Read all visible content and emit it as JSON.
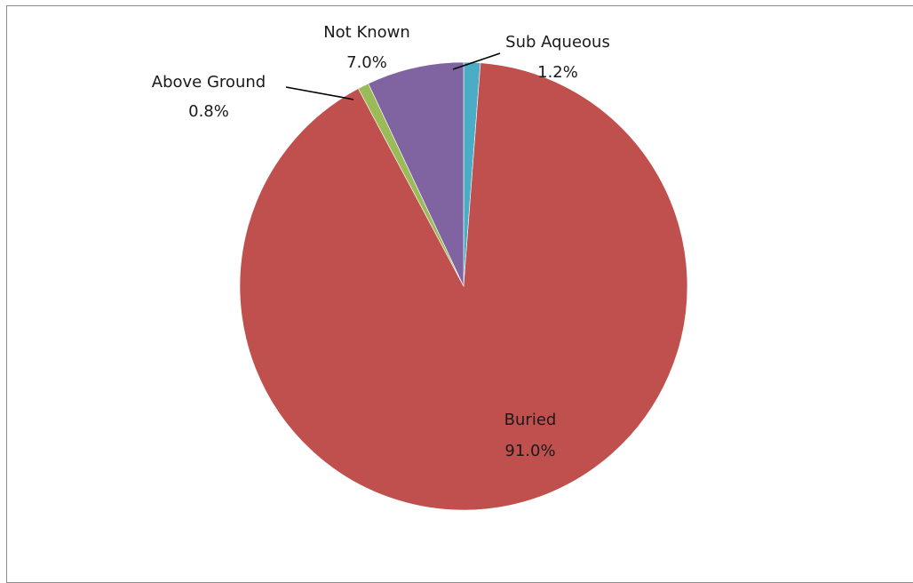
{
  "chart_data": {
    "type": "pie",
    "title": "",
    "start_angle_deg": 0,
    "direction": "clockwise",
    "slices": [
      {
        "label": "Sub Aqueous",
        "value": 1.2,
        "display": "1.2%",
        "color": "#4bacc6"
      },
      {
        "label": "Buried",
        "value": 91.0,
        "display": "91.0%",
        "color": "#c0504d"
      },
      {
        "label": "Above Ground",
        "value": 0.8,
        "display": "0.8%",
        "color": "#9bbb59"
      },
      {
        "label": "Not Known",
        "value": 7.0,
        "display": "7.0%",
        "color": "#8064a2"
      }
    ],
    "legend": "none",
    "data_labels": "category-name-and-percentage"
  }
}
